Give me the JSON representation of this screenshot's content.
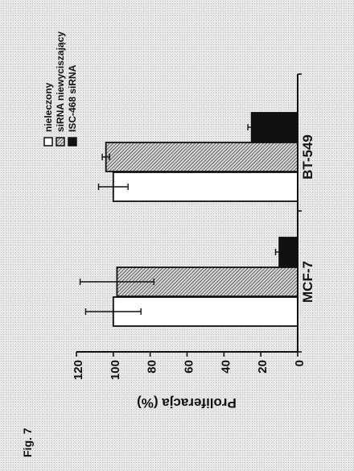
{
  "figure_label": "Fig. 7",
  "chart_data": {
    "type": "bar",
    "orientation": "rotated-90",
    "categories": [
      "MCF-7",
      "BT-549"
    ],
    "series": [
      {
        "name": "nieleczony",
        "values": [
          100,
          100
        ],
        "errors": [
          15,
          8
        ],
        "fill": "white"
      },
      {
        "name": "siRNA niewyciszający",
        "values": [
          98,
          104
        ],
        "errors": [
          20,
          2
        ],
        "fill": "hatched"
      },
      {
        "name": "ISC-468 siRNA",
        "values": [
          10,
          25
        ],
        "errors": [
          2,
          2
        ],
        "fill": "black"
      }
    ],
    "ylabel": "Proliferacja (%)",
    "ylim": [
      0,
      120
    ],
    "yticks": [
      "0",
      "20",
      "40",
      "60",
      "80",
      "100",
      "120"
    ],
    "legend_position": "top-right"
  }
}
